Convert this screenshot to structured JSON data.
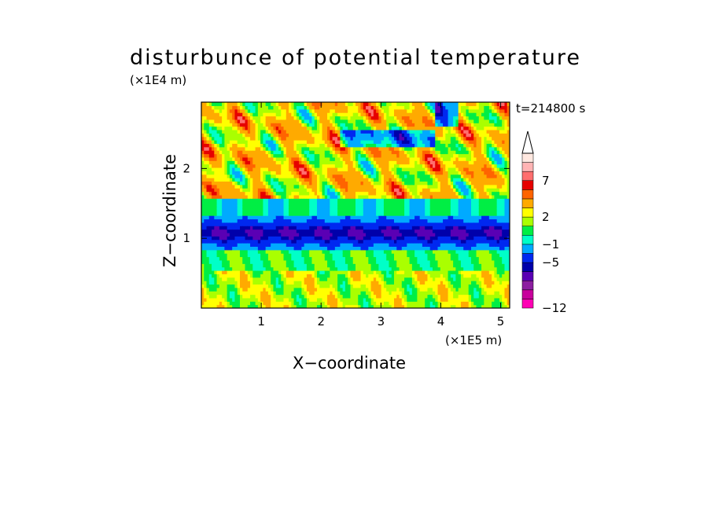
{
  "chart_data": {
    "type": "heatmap",
    "title": "disturbunce of potential temperature",
    "xlabel": "X−coordinate",
    "ylabel": "Z−coordinate",
    "x_scale_label": "(×1E5 m)",
    "y_scale_label": "(×1E4 m)",
    "time_label": "t=214800 s",
    "xlim": [
      0,
      5.15
    ],
    "ylim": [
      0,
      2.95
    ],
    "x_ticks": [
      "1",
      "2",
      "3",
      "4",
      "5"
    ],
    "x_tick_values": [
      1,
      2,
      3,
      4,
      5
    ],
    "y_ticks": [
      "1",
      "2"
    ],
    "y_tick_values": [
      1,
      2
    ],
    "colorbar": {
      "labels": [
        {
          "text": "7",
          "value": 7
        },
        {
          "text": "2",
          "value": 2
        },
        {
          "text": "−1",
          "value": -1
        },
        {
          "text": "−5",
          "value": -5
        },
        {
          "text": "−12",
          "value": -12
        }
      ],
      "levels": [
        {
          "from": -12,
          "color": "#ff00b4"
        },
        {
          "from": -11,
          "color": "#c8009c"
        },
        {
          "from": -9,
          "color": "#8c1ea0"
        },
        {
          "from": -7,
          "color": "#5a00b4"
        },
        {
          "from": -6,
          "color": "#0000aa"
        },
        {
          "from": -5,
          "color": "#0028f0"
        },
        {
          "from": -3,
          "color": "#00aaff"
        },
        {
          "from": -1,
          "color": "#00ffc8"
        },
        {
          "from": 0,
          "color": "#00ee44"
        },
        {
          "from": 1,
          "color": "#aaff00"
        },
        {
          "from": 2,
          "color": "#ffff00"
        },
        {
          "from": 3,
          "color": "#ffaa00"
        },
        {
          "from": 5,
          "color": "#ff6400"
        },
        {
          "from": 6,
          "color": "#e60000"
        },
        {
          "from": 7,
          "color": "#ff6e6e"
        },
        {
          "from": 8,
          "color": "#ffb4b4"
        },
        {
          "from": 9,
          "color": "#ffe8e0"
        }
      ],
      "extend": "max"
    },
    "field_description": "Near-surface layer (Z<0.5) mostly yellow/green (0 to 3); band of strong negative values (-5 to -6, blue) around Z 0.8-1.3; upper layer (Z>1.5) mixed orange/red (3 to 7) and green/blue wave patterns."
  }
}
